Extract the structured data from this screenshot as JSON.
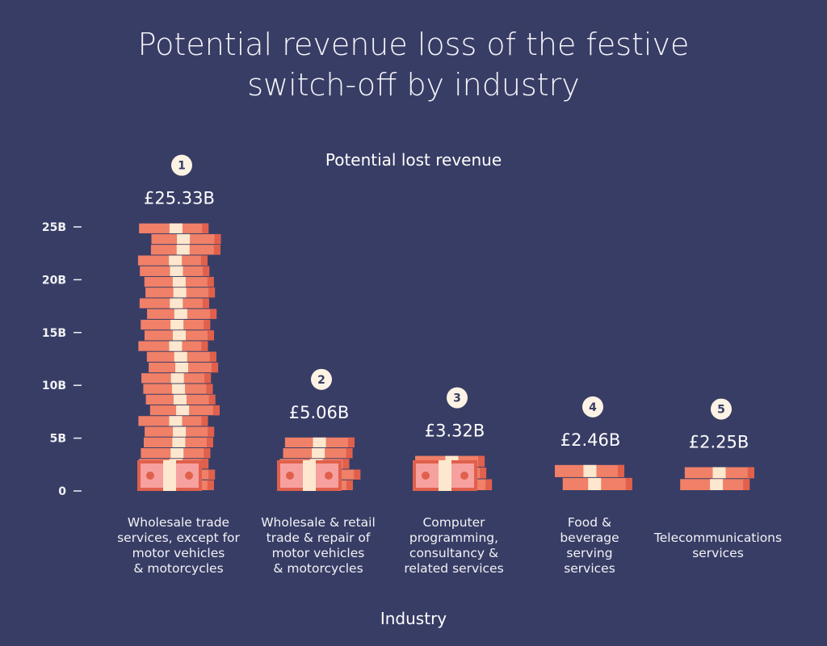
{
  "chart_data": {
    "type": "bar",
    "title": "Potential revenue loss of the festive switch-off by industry",
    "subtitle": "Potential lost revenue",
    "xlabel": "Industry",
    "ylabel": "",
    "ylim": [
      0,
      25
    ],
    "yticks": [
      "0",
      "5B",
      "10B",
      "15B",
      "20B",
      "25B"
    ],
    "ytick_values": [
      0,
      5,
      10,
      15,
      20,
      25
    ],
    "categories": [
      "Wholesale trade services, except for motor vehicles & motorcycles",
      "Wholesale & retail trade & repair of motor vehicles & motorcycles",
      "Computer programming, consultancy & related services",
      "Food & beverage serving services",
      "Telecommunications services"
    ],
    "category_lines": [
      [
        "Wholesale trade",
        "services, except for",
        "motor vehicles",
        "& motorcycles"
      ],
      [
        "Wholesale & retail",
        "trade & repair of",
        "motor vehicles",
        "& motorcycles"
      ],
      [
        "Computer",
        "programming,",
        "consultancy &",
        "related services"
      ],
      [
        "Food &",
        "beverage",
        "serving",
        "services"
      ],
      [
        "Telecommunications",
        "services"
      ]
    ],
    "values": [
      25.33,
      5.06,
      3.32,
      2.46,
      2.25
    ],
    "value_labels": [
      "£25.33B",
      "£5.06B",
      "£3.32B",
      "£2.46B",
      "£2.25B"
    ],
    "ranks": [
      "1",
      "2",
      "3",
      "4",
      "5"
    ],
    "grid": false,
    "colors": {
      "background": "#383d65",
      "bill": "#f08068",
      "bill_dark": "#e0604c",
      "band": "#fde8cf",
      "front_bill": "#f7a0a0",
      "rank_circle": "#fdf3e4",
      "rank_text": "#383d65"
    }
  }
}
